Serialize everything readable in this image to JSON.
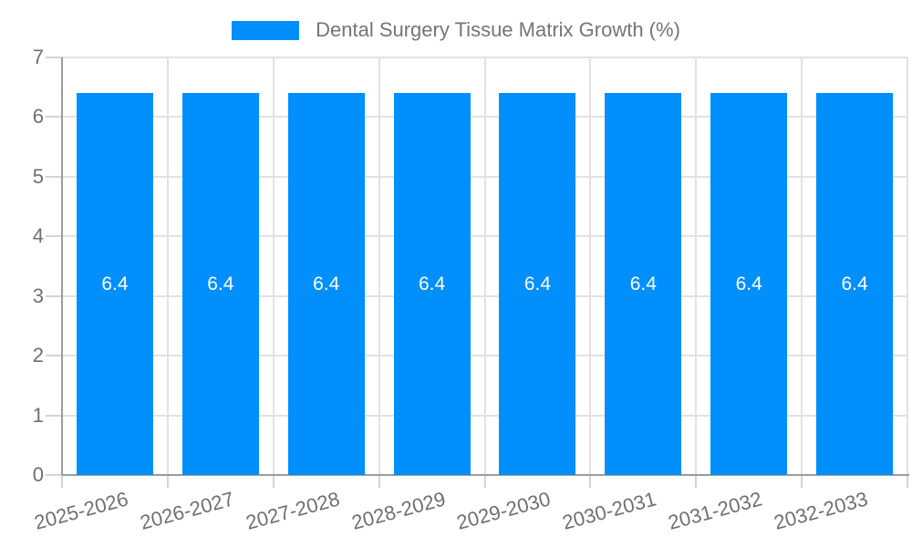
{
  "chart_data": {
    "type": "bar",
    "title": "Dental Surgery Tissue Matrix Growth (%)",
    "legend_position": "top",
    "categories": [
      "2025-2026",
      "2026-2027",
      "2027-2028",
      "2028-2029",
      "2029-2030",
      "2030-2031",
      "2031-2032",
      "2032-2033"
    ],
    "series": [
      {
        "name": "Dental Surgery Tissue Matrix Growth (%)",
        "values": [
          6.4,
          6.4,
          6.4,
          6.4,
          6.4,
          6.4,
          6.4,
          6.4
        ]
      }
    ],
    "value_labels": [
      "6.4",
      "6.4",
      "6.4",
      "6.4",
      "6.4",
      "6.4",
      "6.4",
      "6.4"
    ],
    "xlabel": "",
    "ylabel": "",
    "ylim": [
      0,
      7
    ],
    "y_ticks": [
      0,
      1,
      2,
      3,
      4,
      5,
      6,
      7
    ],
    "grid": true,
    "x_label_rotation_deg": -15,
    "colors": {
      "bar": "#008FFB",
      "value_label": "#FFFFFF",
      "axis_line": "#9B9B9B",
      "grid_line": "#E2E2E2",
      "tick_mark": "#D4D4D4",
      "axis_text": "#6F6F6F",
      "legend_text": "#757575",
      "background": "#FFFFFF"
    }
  }
}
